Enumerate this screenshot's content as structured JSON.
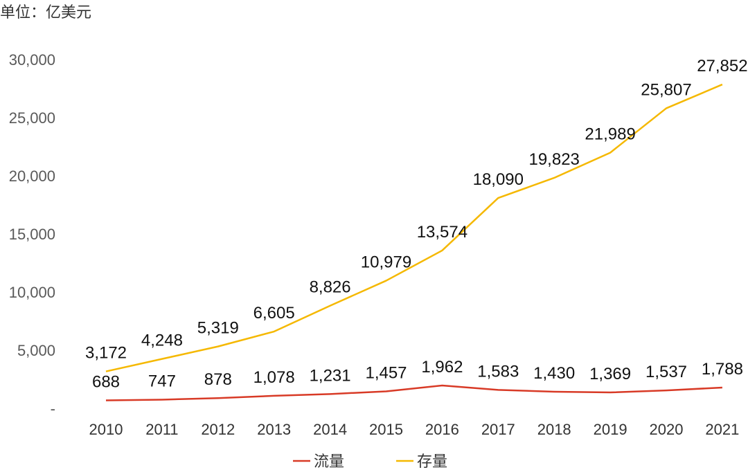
{
  "chart_data": {
    "type": "line",
    "unit_label": "单位：亿美元",
    "categories": [
      "2010",
      "2011",
      "2012",
      "2013",
      "2014",
      "2015",
      "2016",
      "2017",
      "2018",
      "2019",
      "2020",
      "2021"
    ],
    "series": [
      {
        "name": "流量",
        "color": "#D83A26",
        "values": [
          688,
          747,
          878,
          1078,
          1231,
          1457,
          1962,
          1583,
          1430,
          1369,
          1537,
          1788
        ],
        "labels": [
          "688",
          "747",
          "878",
          "1,078",
          "1,231",
          "1,457",
          "1,962",
          "1,583",
          "1,430",
          "1,369",
          "1,537",
          "1,788"
        ]
      },
      {
        "name": "存量",
        "color": "#F5B800",
        "values": [
          3172,
          4248,
          5319,
          6605,
          8826,
          10979,
          13574,
          18090,
          19823,
          21989,
          25807,
          27852
        ],
        "labels": [
          "3,172",
          "4,248",
          "5,319",
          "6,605",
          "8,826",
          "10,979",
          "13,574",
          "18,090",
          "19,823",
          "21,989",
          "25,807",
          "27,852"
        ]
      }
    ],
    "ylim": [
      0,
      30000
    ],
    "yticks": [
      0,
      5000,
      10000,
      15000,
      20000,
      25000,
      30000
    ],
    "ytick_labels": [
      "-",
      "5,000",
      "10,000",
      "15,000",
      "20,000",
      "25,000",
      "30,000"
    ],
    "grid": false,
    "legend_position": "bottom"
  }
}
